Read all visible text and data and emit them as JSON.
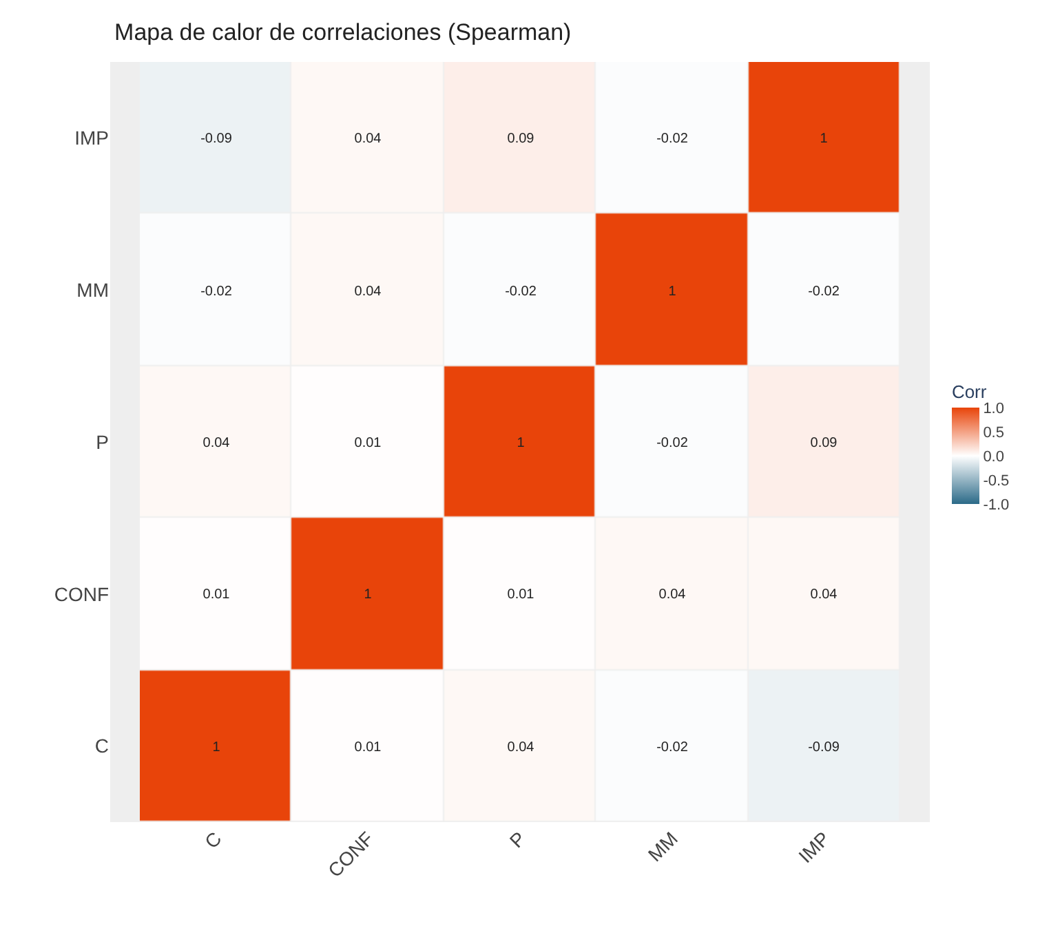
{
  "chart_data": {
    "type": "heatmap",
    "title": "Mapa de calor de correlaciones (Spearman)",
    "categories": [
      "C",
      "CONF",
      "P",
      "MM",
      "IMP"
    ],
    "y_categories": [
      "IMP",
      "MM",
      "P",
      "CONF",
      "C"
    ],
    "cells": [
      [
        -0.09,
        0.04,
        0.09,
        -0.02,
        1
      ],
      [
        -0.02,
        0.04,
        -0.02,
        1,
        -0.02
      ],
      [
        0.04,
        0.01,
        1,
        -0.02,
        0.09
      ],
      [
        0.01,
        1,
        0.01,
        0.04,
        0.04
      ],
      [
        1,
        0.01,
        0.04,
        -0.02,
        -0.09
      ]
    ],
    "data_labels": true,
    "clabel": "Corr",
    "clim": [
      -1,
      1
    ],
    "cticks": [
      {
        "value": -1,
        "label": "-1.0"
      },
      {
        "value": -0.5,
        "label": "-0.5"
      },
      {
        "value": 0,
        "label": "0.0"
      },
      {
        "value": 0.5,
        "label": "0.5"
      },
      {
        "value": 1,
        "label": "1.0"
      }
    ]
  }
}
